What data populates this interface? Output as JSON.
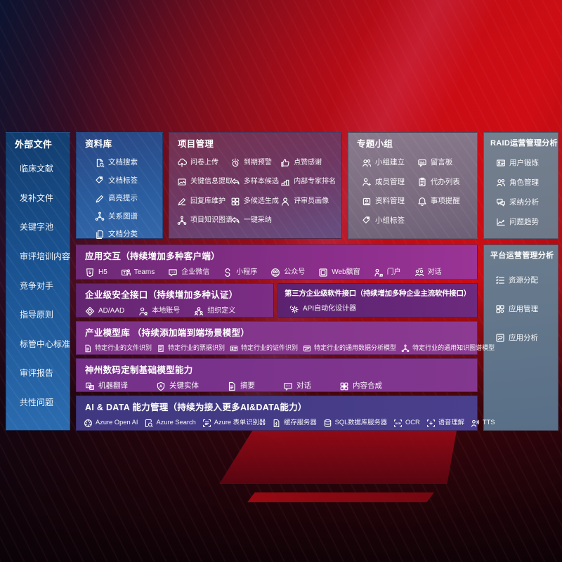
{
  "colors": {
    "accent_red": "#c60d13",
    "panel_blue": "#1d5796",
    "panel_purple": "#7b2d85",
    "panel_gray": "#75808f",
    "panel_indigo": "#453a85"
  },
  "sidebar": {
    "title": "外部文件",
    "items": [
      "临床文献",
      "发补文件",
      "关键字池",
      "审评培训内容",
      "竞争对手",
      "指导原则",
      "标管中心标准",
      "审评报告",
      "共性问题"
    ]
  },
  "repository": {
    "title": "资料库",
    "items": [
      {
        "label": "文档搜索",
        "icon": "doc-search-icon"
      },
      {
        "label": "文档标签",
        "icon": "tag-icon"
      },
      {
        "label": "高亮提示",
        "icon": "highlight-pen-icon"
      },
      {
        "label": "关系图谱",
        "icon": "relation-graph-icon"
      },
      {
        "label": "文档分类",
        "icon": "docs-stack-icon"
      }
    ]
  },
  "project": {
    "title": "项目管理",
    "items": [
      {
        "label": "问卷上传",
        "icon": "cloud-upload-icon"
      },
      {
        "label": "到期预警",
        "icon": "alarm-icon"
      },
      {
        "label": "点赞感谢",
        "icon": "thumbs-up-icon"
      },
      {
        "label": "关键信息提取",
        "icon": "extract-image-icon"
      },
      {
        "label": "多样本候选",
        "icon": "reply-arrow-icon"
      },
      {
        "label": "内部专家排名",
        "icon": "ranking-chart-icon"
      },
      {
        "label": "回复库维护",
        "icon": "pen-icon"
      },
      {
        "label": "多候选生成",
        "icon": "tiles-icon"
      },
      {
        "label": "评审员画像",
        "icon": "person-icon"
      },
      {
        "label": "项目知识图谱",
        "icon": "relation-graph-icon"
      },
      {
        "label": "一键采纳",
        "icon": "adopt-arrow-icon"
      }
    ]
  },
  "groups": {
    "title": "专题小组",
    "items": [
      {
        "label": "小组建立",
        "icon": "people-icon"
      },
      {
        "label": "留言板",
        "icon": "bbs-board-icon"
      },
      {
        "label": "成员管理",
        "icon": "person-add-icon"
      },
      {
        "label": "代办列表",
        "icon": "clipboard-icon"
      },
      {
        "label": "资料管理",
        "icon": "album-icon"
      },
      {
        "label": "事项提醒",
        "icon": "bell-icon"
      },
      {
        "label": "小组标签",
        "icon": "tag-icon"
      }
    ]
  },
  "raid": {
    "title": "RAID运营管理分析",
    "items": [
      {
        "label": "用户锻炼",
        "icon": "id-card-icon"
      },
      {
        "label": "角色管理",
        "icon": "people-icon"
      },
      {
        "label": "采纳分析",
        "icon": "qa-chat-icon"
      },
      {
        "label": "问题趋势",
        "icon": "trend-chart-icon"
      }
    ]
  },
  "platform": {
    "title": "平台运营管理分析",
    "items": [
      {
        "label": "资源分配",
        "icon": "checklist-icon"
      },
      {
        "label": "应用管理",
        "icon": "apps-grid-icon"
      },
      {
        "label": "应用分析",
        "icon": "app-chart-icon"
      }
    ]
  },
  "interaction": {
    "title": "应用交互（持续增加多种客户端）",
    "items": [
      {
        "label": "H5",
        "icon": "html5-icon"
      },
      {
        "label": "Teams",
        "icon": "teams-icon"
      },
      {
        "label": "企业微信",
        "icon": "wechat-work-icon"
      },
      {
        "label": "小程序",
        "icon": "miniprogram-icon"
      },
      {
        "label": "公众号",
        "icon": "official-account-icon"
      },
      {
        "label": "Web飘窗",
        "icon": "web-window-icon"
      },
      {
        "label": "门户",
        "icon": "portal-icon"
      },
      {
        "label": "对话",
        "icon": "dialog-icon"
      }
    ]
  },
  "security": {
    "title": "企业级安全接口（持续增加多种认证）",
    "items": [
      {
        "label": "AD/AAD",
        "icon": "azure-ad-icon"
      },
      {
        "label": "本地账号",
        "icon": "local-account-icon"
      },
      {
        "label": "组织定义",
        "icon": "org-define-icon"
      }
    ]
  },
  "thirdparty": {
    "title": "第三方企业级软件接口（持续增加多种企业主流软件接口）",
    "items": [
      {
        "label": "API自动化设计器",
        "icon": "api-gear-icon"
      }
    ]
  },
  "industry": {
    "title": "产业模型库 （持续添加端到端场景模型）",
    "items": [
      {
        "label": "特定行业的文件识别",
        "icon": "file-doc-icon"
      },
      {
        "label": "特定行业的票据识别",
        "icon": "receipt-icon"
      },
      {
        "label": "特定行业的证件识别",
        "icon": "id-card-icon"
      },
      {
        "label": "特定行业的通用数据分析模型",
        "icon": "data-model-icon"
      },
      {
        "label": "特定行业的通用知识图谱模型",
        "icon": "relation-graph-icon"
      }
    ]
  },
  "basemodel": {
    "title": "神州数码定制基础模型能力",
    "items": [
      {
        "label": "机器翻译",
        "icon": "translate-icon"
      },
      {
        "label": "关键实体",
        "icon": "entity-shield-icon"
      },
      {
        "label": "摘要",
        "icon": "summary-doc-icon"
      },
      {
        "label": "对话",
        "icon": "chat-bubble-icon"
      },
      {
        "label": "内容合成",
        "icon": "compose-icon"
      }
    ]
  },
  "aidata": {
    "title": "AI & DATA 能力管理（持续为接入更多AI&DATA能力）",
    "items": [
      {
        "label": "Azure Open AI",
        "icon": "openai-icon"
      },
      {
        "label": "Azure Search",
        "icon": "search-doc-icon"
      },
      {
        "label": "Azure 表单识别器",
        "icon": "form-recognizer-icon"
      },
      {
        "label": "缓存服务器",
        "icon": "cache-server-icon"
      },
      {
        "label": "SQL数据库服务器",
        "icon": "database-icon"
      },
      {
        "label": "OCR",
        "icon": "ocr-icon"
      },
      {
        "label": "语音理解",
        "icon": "speech-icon"
      },
      {
        "label": "TTS",
        "icon": "tts-icon"
      }
    ]
  }
}
